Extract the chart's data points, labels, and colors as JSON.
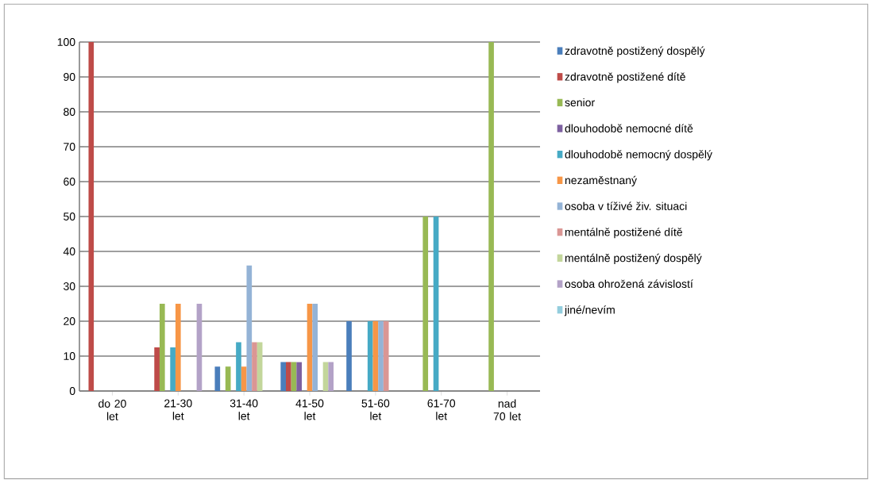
{
  "chart_data": {
    "type": "bar",
    "categories": [
      "do 20 let",
      "21-30 let",
      "31-40 let",
      "41-50 let",
      "51-60 let",
      "61-70 let",
      "nad 70 let"
    ],
    "series": [
      {
        "name": "zdravotně postižený dospělý",
        "color": "#4a7ebb",
        "values": [
          0,
          0,
          7,
          8.3,
          20,
          0,
          0
        ]
      },
      {
        "name": "zdravotně postižené dítě",
        "color": "#be4b48",
        "values": [
          100,
          12.5,
          0,
          8.3,
          0,
          0,
          0
        ]
      },
      {
        "name": "senior",
        "color": "#98b954",
        "values": [
          0,
          25,
          7,
          8.3,
          0,
          50,
          100
        ]
      },
      {
        "name": "dlouhodobě nemocné dítě",
        "color": "#7d60a0",
        "values": [
          0,
          0,
          0,
          8.3,
          0,
          0,
          0
        ]
      },
      {
        "name": "dlouhodobě nemocný dospělý",
        "color": "#46aac5",
        "values": [
          0,
          12.5,
          14,
          0,
          20,
          50,
          0
        ]
      },
      {
        "name": "nezaměstnaný",
        "color": "#f79646",
        "values": [
          0,
          25,
          7,
          25,
          20,
          0,
          0
        ]
      },
      {
        "name": "osoba v tíživé živ. situaci",
        "color": "#94b3d6",
        "values": [
          0,
          0,
          36,
          25,
          20,
          0,
          0
        ]
      },
      {
        "name": "mentálně postižené dítě",
        "color": "#da9694",
        "values": [
          0,
          0,
          14,
          0,
          20,
          0,
          0
        ]
      },
      {
        "name": "mentálně postižený dospělý",
        "color": "#c3d69b",
        "values": [
          0,
          0,
          14,
          8.3,
          0,
          0,
          0
        ]
      },
      {
        "name": "osoba ohrožená závislostí",
        "color": "#b3a2c7",
        "values": [
          0,
          25,
          0,
          8.3,
          0,
          0,
          0
        ]
      },
      {
        "name": "jiné/nevím",
        "color": "#93cddd",
        "values": [
          0,
          0,
          0,
          0,
          0,
          0,
          0
        ]
      }
    ],
    "ylim": [
      0,
      100
    ],
    "yticks": [
      0,
      10,
      20,
      30,
      40,
      50,
      60,
      70,
      80,
      90,
      100
    ],
    "grid": "y",
    "legend": "right"
  }
}
